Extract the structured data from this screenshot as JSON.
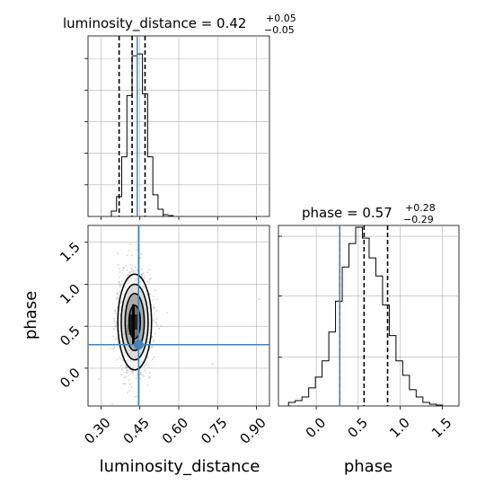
{
  "chart_data": [
    {
      "type": "histogram",
      "panel": "top-left",
      "parameter": "luminosity_distance",
      "title": {
        "prefix": "luminosity_distance = 0.42",
        "plus": "+0.05",
        "minus": "−0.05"
      },
      "xlim": [
        0.25,
        0.95
      ],
      "ylim": [
        0,
        1.0
      ],
      "bins": [
        0.34,
        0.36,
        0.38,
        0.4,
        0.42,
        0.44,
        0.46,
        0.48,
        0.5,
        0.52
      ],
      "values": [
        0.03,
        0.11,
        0.33,
        0.67,
        0.89,
        0.9,
        0.68,
        0.33,
        0.12,
        0.04
      ],
      "tail": [
        0.54,
        0.56
      ],
      "tail_values": [
        0.01,
        0.005
      ],
      "quantiles": [
        0.37,
        0.42,
        0.47
      ],
      "truth": 0.44,
      "grid": true,
      "show_x_ticklabels": false
    },
    {
      "type": "histogram",
      "panel": "bottom-right",
      "parameter": "phase",
      "title": {
        "prefix": "phase = 0.57",
        "plus": "+0.28",
        "minus": "−0.29"
      },
      "xlim": [
        -0.45,
        1.7
      ],
      "ylim": [
        0,
        1.0
      ],
      "xticks": [
        "0.0",
        "0.5",
        "1.0",
        "1.5"
      ],
      "xtick_values": [
        0.0,
        0.5,
        1.0,
        1.5
      ],
      "xlabel": "phase",
      "bins": [
        -0.33,
        -0.25,
        -0.17,
        -0.09,
        -0.01,
        0.07,
        0.15,
        0.23,
        0.31,
        0.39,
        0.47,
        0.55,
        0.63,
        0.71,
        0.79,
        0.87,
        0.95,
        1.03,
        1.11,
        1.19,
        1.27,
        1.35,
        1.43,
        1.51
      ],
      "values": [
        0.02,
        0.03,
        0.05,
        0.1,
        0.16,
        0.25,
        0.41,
        0.58,
        0.77,
        0.9,
        0.99,
        0.93,
        0.82,
        0.72,
        0.56,
        0.39,
        0.25,
        0.17,
        0.09,
        0.05,
        0.02,
        0.01,
        0.005
      ],
      "quantiles": [
        0.28,
        0.57,
        0.85
      ],
      "truth": 0.28,
      "grid": true
    },
    {
      "type": "scatter-contour",
      "panel": "bottom-left",
      "x_parameter": "luminosity_distance",
      "y_parameter": "phase",
      "xlim": [
        0.25,
        0.95
      ],
      "ylim": [
        -0.45,
        1.7
      ],
      "xticks": [
        "0.30",
        "0.45",
        "0.60",
        "0.75",
        "0.90"
      ],
      "xtick_values": [
        0.3,
        0.45,
        0.6,
        0.75,
        0.9
      ],
      "yticks": [
        "0.0",
        "0.5",
        "1.0",
        "1.5"
      ],
      "ytick_values": [
        0.0,
        0.5,
        1.0,
        1.5
      ],
      "xlabel": "luminosity_distance",
      "ylabel": "phase",
      "truth": {
        "x": 0.445,
        "y": 0.28
      },
      "contours": [
        {
          "cx": 0.43,
          "cy": 0.55,
          "rx": 0.065,
          "ry": 0.57
        },
        {
          "cx": 0.43,
          "cy": 0.55,
          "rx": 0.052,
          "ry": 0.45
        },
        {
          "cx": 0.43,
          "cy": 0.55,
          "rx": 0.037,
          "ry": 0.34
        },
        {
          "cx": 0.43,
          "cy": 0.55,
          "rx": 0.022,
          "ry": 0.2
        }
      ],
      "density_cells": [
        {
          "x": 0.4,
          "y": 0.4,
          "w": 0.01,
          "h": 0.12,
          "shade": "#888888"
        },
        {
          "x": 0.41,
          "y": 0.4,
          "w": 0.01,
          "h": 0.24,
          "shade": "#1a1a1a"
        },
        {
          "x": 0.42,
          "y": 0.28,
          "w": 0.01,
          "h": 0.48,
          "shade": "#000000"
        },
        {
          "x": 0.43,
          "y": 0.46,
          "w": 0.01,
          "h": 0.18,
          "shade": "#222222"
        },
        {
          "x": 0.44,
          "y": 0.52,
          "w": 0.01,
          "h": 0.12,
          "shade": "#555555"
        }
      ],
      "scatter_color": "#7f7f7f",
      "grid": true
    }
  ],
  "colors": {
    "truth": "#4682b4",
    "hist": "#000000",
    "grid": "#b0b0b0",
    "quantile": "#000000"
  }
}
